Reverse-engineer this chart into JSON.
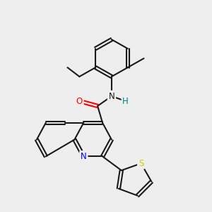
{
  "bg_color": "#eeeeee",
  "colors": {
    "bond": "#1a1a1a",
    "N": "#0000ff",
    "O": "#ff0000",
    "S": "#cccc00",
    "NH": "#008080"
  },
  "figsize": [
    3.0,
    3.0
  ],
  "dpi": 100
}
